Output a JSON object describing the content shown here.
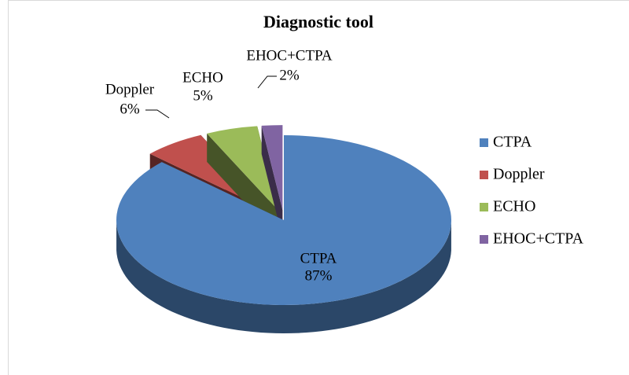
{
  "chart_data": {
    "type": "pie",
    "title": "Diagnostic tool",
    "categories": [
      "CTPA",
      "Doppler",
      "ECHO",
      "EHOC+CTPA"
    ],
    "values": [
      87,
      6,
      5,
      2
    ],
    "value_labels": [
      "87%",
      "6%",
      "5%",
      "2%"
    ],
    "colors": [
      "#4f81bd",
      "#c0504d",
      "#9bbb59",
      "#8064a2"
    ],
    "legend": "right"
  }
}
